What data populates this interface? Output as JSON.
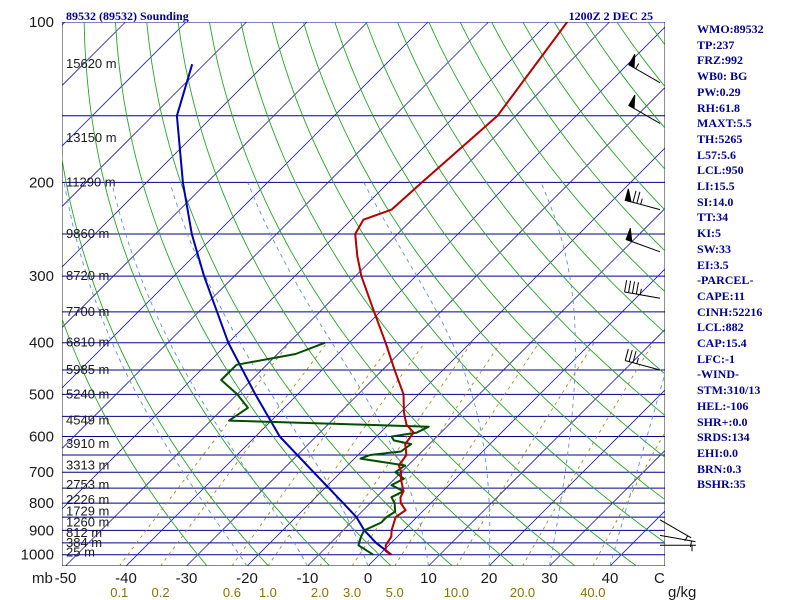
{
  "header": {
    "station": "89532 (89532) Sounding",
    "time": "1200Z  2 DEC 25"
  },
  "indices": [
    "WMO:89532",
    "TP:237",
    "FRZ:992",
    "WB0: BG",
    "PW:0.29",
    "RH:61.8",
    "MAXT:5.5",
    "TH:5265",
    "L57:5.6",
    "LCL:950",
    "LI:15.5",
    "SI:14.0",
    "TT:34",
    "KI:5",
    "SW:33",
    "EI:3.5",
    "-PARCEL-",
    "CAPE:11",
    "CINH:52216",
    "LCL:882",
    "CAP:15.4",
    "LFC:-1",
    "-WIND-",
    "STM:310/13",
    "HEL:-106",
    "SHR+:0.0",
    "SRDS:134",
    "EHI:0.0",
    "BRN:0.3",
    "BSHR:35"
  ],
  "colors": {
    "isobar": "#00008b",
    "isotherm": "#1e1ea0",
    "dry_adiabat": "#2ca02c",
    "moist_adiabat": "#5b8fd9",
    "mixing_ratio": "#a08a20",
    "temperature": "#b00000",
    "dewpoint": "#004d00",
    "parcel": "#0000aa",
    "wind": "#000000"
  },
  "chart_data": {
    "type": "skew-t",
    "y_unit": "mb",
    "x_unit": "C",
    "mixing_unit": "g/kg",
    "pressure_ticks": [
      {
        "p": 100,
        "label": "100"
      },
      {
        "p": 200,
        "label": "200"
      },
      {
        "p": 300,
        "label": "300"
      },
      {
        "p": 400,
        "label": "400"
      },
      {
        "p": 500,
        "label": "500"
      },
      {
        "p": 600,
        "label": "600"
      },
      {
        "p": 700,
        "label": "700"
      },
      {
        "p": 800,
        "label": "800"
      },
      {
        "p": 900,
        "label": "900"
      },
      {
        "p": 1000,
        "label": "1000"
      }
    ],
    "temperature_ticks": [
      {
        "t": -50,
        "label": "-50"
      },
      {
        "t": -40,
        "label": "-40"
      },
      {
        "t": -30,
        "label": "-30"
      },
      {
        "t": -20,
        "label": "-20"
      },
      {
        "t": -10,
        "label": "-10"
      },
      {
        "t": 0,
        "label": "0"
      },
      {
        "t": 10,
        "label": "10"
      },
      {
        "t": 20,
        "label": "20"
      },
      {
        "t": 30,
        "label": "30"
      },
      {
        "t": 40,
        "label": "40"
      }
    ],
    "mixing_ratio_ticks": [
      {
        "w": 0.1,
        "label": "0.1"
      },
      {
        "w": 0.2,
        "label": "0.2"
      },
      {
        "w": 0.6,
        "label": "0.6"
      },
      {
        "w": 1.0,
        "label": "1.0"
      },
      {
        "w": 2.0,
        "label": "2.0"
      },
      {
        "w": 3.0,
        "label": "3.0"
      },
      {
        "w": 5.0,
        "label": "5.0"
      },
      {
        "w": 10.0,
        "label": "10.0"
      },
      {
        "w": 20.0,
        "label": "20.0"
      },
      {
        "w": 40.0,
        "label": "40.0"
      }
    ],
    "heights": [
      {
        "p": 120,
        "label": "15620 m"
      },
      {
        "p": 165,
        "label": "13150 m"
      },
      {
        "p": 200,
        "label": "11290 m"
      },
      {
        "p": 250,
        "label": "9860 m"
      },
      {
        "p": 300,
        "label": "8720 m"
      },
      {
        "p": 350,
        "label": "7700 m"
      },
      {
        "p": 400,
        "label": "6810 m"
      },
      {
        "p": 450,
        "label": "5985 m"
      },
      {
        "p": 500,
        "label": "5240 m"
      },
      {
        "p": 560,
        "label": "4549 m"
      },
      {
        "p": 620,
        "label": "3910 m"
      },
      {
        "p": 680,
        "label": "3313 m"
      },
      {
        "p": 740,
        "label": "2753 m"
      },
      {
        "p": 790,
        "label": "2226 m"
      },
      {
        "p": 830,
        "label": "1729 m"
      },
      {
        "p": 870,
        "label": "1260 m"
      },
      {
        "p": 910,
        "label": "812 m"
      },
      {
        "p": 950,
        "label": "384 m"
      },
      {
        "p": 990,
        "label": "25 m"
      }
    ],
    "temperature": [
      {
        "p": 1000,
        "t": 2.0
      },
      {
        "p": 985,
        "t": 0.5
      },
      {
        "p": 960,
        "t": -0.5
      },
      {
        "p": 925,
        "t": -1.0
      },
      {
        "p": 900,
        "t": -2.0
      },
      {
        "p": 850,
        "t": -3.5
      },
      {
        "p": 825,
        "t": -3.0
      },
      {
        "p": 800,
        "t": -5.0
      },
      {
        "p": 780,
        "t": -6.0
      },
      {
        "p": 760,
        "t": -6.5
      },
      {
        "p": 720,
        "t": -9.0
      },
      {
        "p": 700,
        "t": -10.0
      },
      {
        "p": 680,
        "t": -11.5
      },
      {
        "p": 650,
        "t": -12.0
      },
      {
        "p": 620,
        "t": -14.0
      },
      {
        "p": 590,
        "t": -14.5
      },
      {
        "p": 570,
        "t": -17.0
      },
      {
        "p": 540,
        "t": -19.5
      },
      {
        "p": 500,
        "t": -22.5
      },
      {
        "p": 450,
        "t": -28.0
      },
      {
        "p": 400,
        "t": -34.0
      },
      {
        "p": 350,
        "t": -41.0
      },
      {
        "p": 300,
        "t": -49.0
      },
      {
        "p": 275,
        "t": -53.0
      },
      {
        "p": 250,
        "t": -57.0
      },
      {
        "p": 235,
        "t": -58.0
      },
      {
        "p": 225,
        "t": -55.0
      },
      {
        "p": 200,
        "t": -54.5
      },
      {
        "p": 150,
        "t": -53.0
      },
      {
        "p": 100,
        "t": -57.0
      }
    ],
    "dewpoint": [
      {
        "p": 1000,
        "t": -1.0
      },
      {
        "p": 985,
        "t": -2.5
      },
      {
        "p": 960,
        "t": -5.0
      },
      {
        "p": 925,
        "t": -6.0
      },
      {
        "p": 900,
        "t": -6.5
      },
      {
        "p": 870,
        "t": -5.0
      },
      {
        "p": 850,
        "t": -5.0
      },
      {
        "p": 830,
        "t": -4.5
      },
      {
        "p": 800,
        "t": -6.0
      },
      {
        "p": 780,
        "t": -7.5
      },
      {
        "p": 760,
        "t": -6.5
      },
      {
        "p": 740,
        "t": -9.5
      },
      {
        "p": 720,
        "t": -8.5
      },
      {
        "p": 700,
        "t": -11.0
      },
      {
        "p": 680,
        "t": -10.5
      },
      {
        "p": 660,
        "t": -19.0
      },
      {
        "p": 650,
        "t": -18.0
      },
      {
        "p": 640,
        "t": -13.5
      },
      {
        "p": 620,
        "t": -13.0
      },
      {
        "p": 610,
        "t": -16.5
      },
      {
        "p": 600,
        "t": -17.5
      },
      {
        "p": 590,
        "t": -14.0
      },
      {
        "p": 575,
        "t": -13.0
      },
      {
        "p": 560,
        "t": -47.0
      },
      {
        "p": 530,
        "t": -46.0
      },
      {
        "p": 500,
        "t": -50.0
      },
      {
        "p": 470,
        "t": -55.0
      },
      {
        "p": 440,
        "t": -55.0
      },
      {
        "p": 420,
        "t": -47.0
      },
      {
        "p": 400,
        "t": -44.0
      }
    ],
    "parcel": [
      {
        "p": 1000,
        "t": 2.0
      },
      {
        "p": 950,
        "t": -2.5
      },
      {
        "p": 900,
        "t": -6.5
      },
      {
        "p": 850,
        "t": -10.0
      },
      {
        "p": 800,
        "t": -14.5
      },
      {
        "p": 700,
        "t": -24.5
      },
      {
        "p": 600,
        "t": -36.0
      },
      {
        "p": 500,
        "t": -47.0
      },
      {
        "p": 400,
        "t": -60.0
      },
      {
        "p": 300,
        "t": -75.0
      },
      {
        "p": 250,
        "t": -84.0
      },
      {
        "p": 200,
        "t": -94.0
      },
      {
        "p": 150,
        "t": -106.0
      },
      {
        "p": 120,
        "t": -112.0
      }
    ],
    "wind_barbs": [
      {
        "p": 130,
        "dir": 300,
        "spd": 55
      },
      {
        "p": 155,
        "dir": 300,
        "spd": 50
      },
      {
        "p": 225,
        "dir": 285,
        "spd": 75
      },
      {
        "p": 270,
        "dir": 290,
        "spd": 50
      },
      {
        "p": 330,
        "dir": 280,
        "spd": 45
      },
      {
        "p": 450,
        "dir": 285,
        "spd": 35
      },
      {
        "p": 860,
        "dir": 120,
        "spd": 5
      },
      {
        "p": 920,
        "dir": 100,
        "spd": 5
      },
      {
        "p": 960,
        "dir": 90,
        "spd": 5
      }
    ]
  }
}
